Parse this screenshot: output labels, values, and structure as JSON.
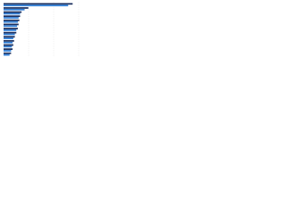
{
  "chart_data": {
    "type": "barh",
    "categories": [
      null,
      null,
      null,
      null,
      null,
      null,
      null,
      null,
      null,
      null,
      null,
      null,
      null
    ],
    "series": [
      {
        "color": "#1b2f5e",
        "values": [
          92,
          33,
          24,
          22,
          21,
          20,
          19,
          17,
          15,
          14,
          13,
          12,
          10
        ]
      },
      {
        "color": "#2f7fd8",
        "values": [
          86,
          28,
          22,
          20,
          19,
          18,
          17,
          15,
          13,
          12,
          11,
          10,
          8
        ]
      }
    ],
    "xlim": [
      0,
      100
    ]
  }
}
